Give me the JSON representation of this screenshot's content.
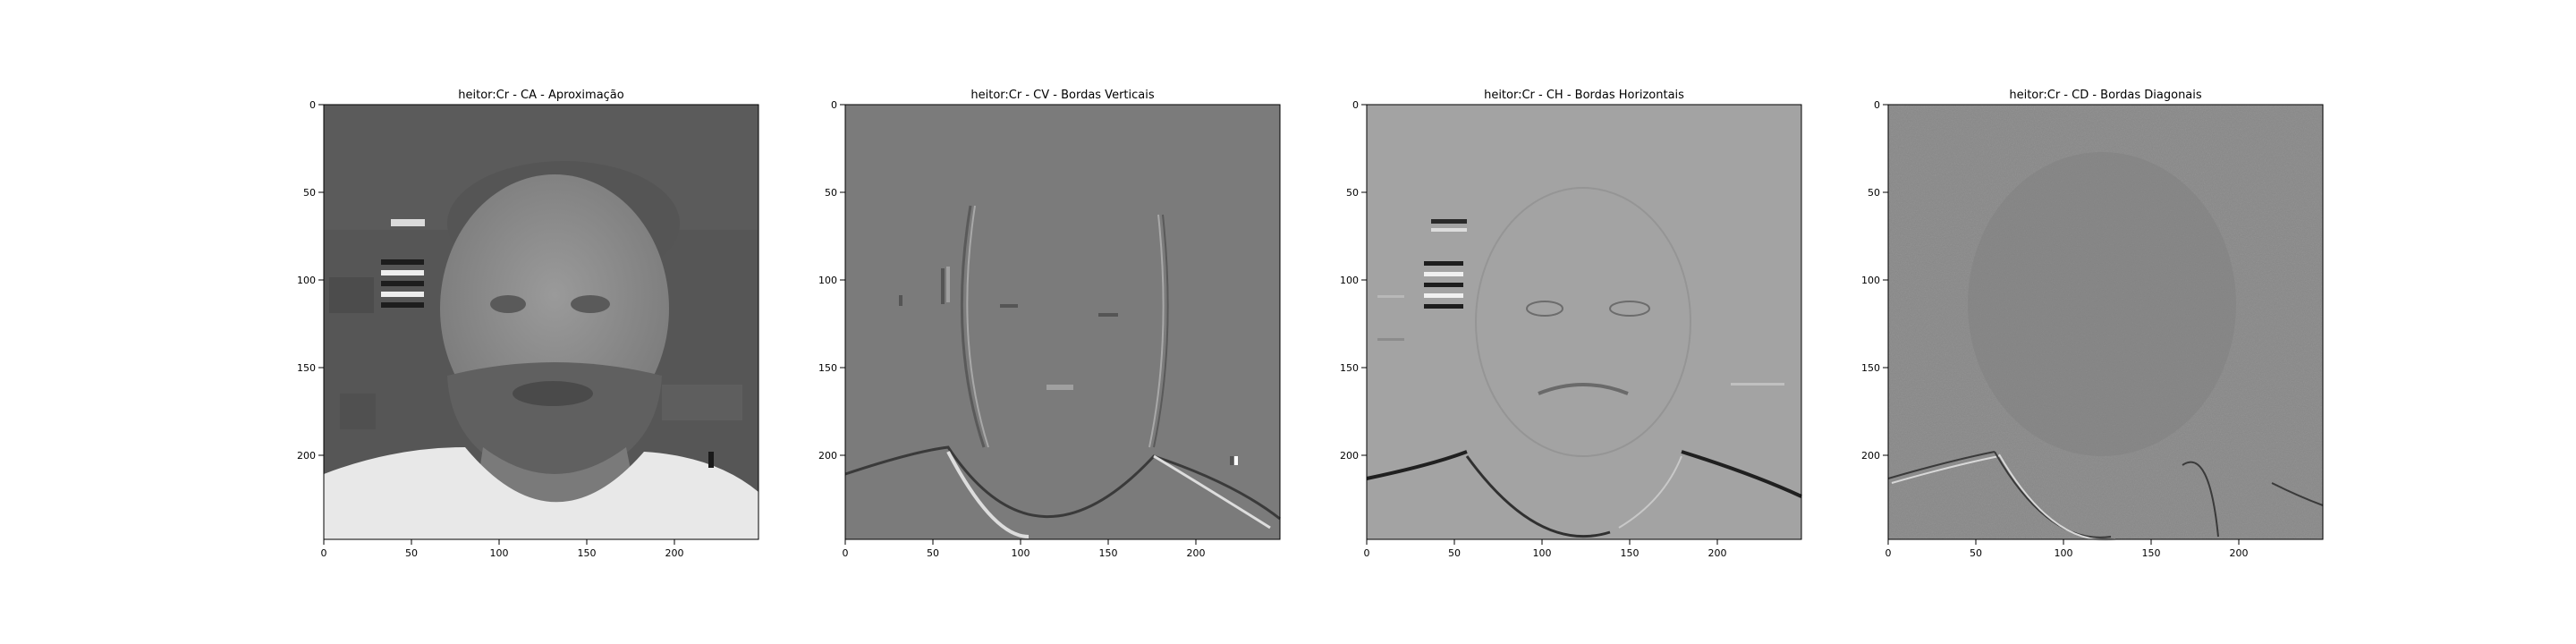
{
  "figure": {
    "panels": [
      {
        "title": "heitor:Cr - CA - Aproximação",
        "kind": "approximation",
        "x_ticks": [
          "0",
          "50",
          "100",
          "150",
          "200"
        ],
        "y_ticks": [
          "0",
          "50",
          "100",
          "150",
          "200"
        ]
      },
      {
        "title": "heitor:Cr - CV - Bordas Verticais",
        "kind": "vertical",
        "x_ticks": [
          "0",
          "50",
          "100",
          "150",
          "200"
        ],
        "y_ticks": [
          "0",
          "50",
          "100",
          "150",
          "200"
        ]
      },
      {
        "title": "heitor:Cr - CH - Bordas Horizontais",
        "kind": "horizontal",
        "x_ticks": [
          "0",
          "50",
          "100",
          "150",
          "200"
        ],
        "y_ticks": [
          "0",
          "50",
          "100",
          "150",
          "200"
        ]
      },
      {
        "title": "heitor:Cr - CD - Bordas Diagonais",
        "kind": "diagonal",
        "x_ticks": [
          "0",
          "50",
          "100",
          "150",
          "200"
        ],
        "y_ticks": [
          "0",
          "50",
          "100",
          "150",
          "200"
        ]
      }
    ],
    "image_extent": [
      0,
      248
    ]
  },
  "colors": {
    "approx_bg": "#555555",
    "approx_face": "#8a8a8a",
    "approx_shirt": "#e6e6e6",
    "vertical_bg": "#7b7b7b",
    "horizontal_bg": "#a3a3a3",
    "diagonal_bg": "#888888"
  }
}
